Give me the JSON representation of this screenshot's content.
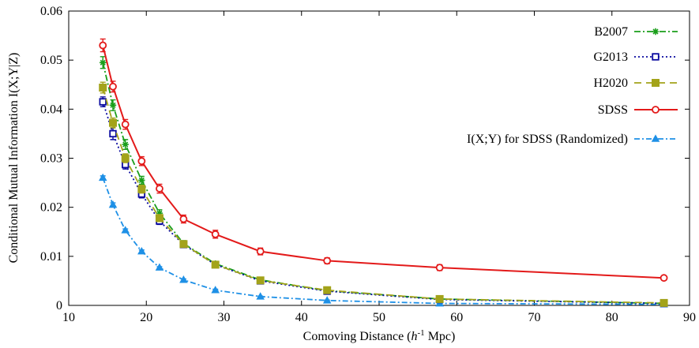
{
  "chart_data": {
    "type": "line",
    "title": "",
    "xlabel": {
      "prefix": "Comoving Distance (",
      "italic": "h",
      "sup": "-1",
      "suffix": " Mpc)"
    },
    "ylabel": "Conditional Mutual Information I(X;Y|Z)",
    "xlim": [
      10,
      90
    ],
    "ylim": [
      0,
      0.06
    ],
    "xticks": [
      10,
      20,
      30,
      40,
      50,
      60,
      70,
      80,
      90
    ],
    "yticks": [
      0,
      0.01,
      0.02,
      0.03,
      0.04,
      0.05,
      0.06
    ],
    "ytick_labels": [
      "0",
      "0.01",
      "0.02",
      "0.03",
      "0.04",
      "0.05",
      "0.06"
    ],
    "xtick_labels": [
      "10",
      "20",
      "30",
      "40",
      "50",
      "60",
      "70",
      "80",
      "90"
    ],
    "grid": false,
    "legend_position": "top-right",
    "x": [
      14.4,
      15.7,
      17.3,
      19.4,
      21.7,
      24.8,
      28.9,
      34.7,
      43.3,
      57.8,
      86.7
    ],
    "series": [
      {
        "name": "B2007",
        "color": "#1a9e1a",
        "marker": "star",
        "dash": "8,3,2,3",
        "values": [
          0.0495,
          0.0408,
          0.0328,
          0.0255,
          0.0188,
          0.0126,
          0.0085,
          0.0052,
          0.003,
          0.0013,
          0.0004
        ],
        "errors": [
          0.0012,
          0.0011,
          0.001,
          0.0008,
          0.0007,
          0.0006,
          0.0004,
          0.0003,
          0.0002,
          0.0001,
          0.0001
        ]
      },
      {
        "name": "G2013",
        "color": "#0a0aa0",
        "marker": "open-square",
        "dash": "2,3",
        "values": [
          0.0415,
          0.035,
          0.0287,
          0.0227,
          0.0172,
          0.0124,
          0.0083,
          0.005,
          0.0029,
          0.0012,
          0.0004
        ],
        "errors": [
          0.001,
          0.0012,
          0.0009,
          0.0008,
          0.0007,
          0.0006,
          0.0004,
          0.0003,
          0.0002,
          0.0001,
          0.0001
        ]
      },
      {
        "name": "H2020",
        "color": "#a3a31a",
        "marker": "filled-square",
        "dash": "9,6",
        "values": [
          0.0444,
          0.0372,
          0.03,
          0.0237,
          0.0178,
          0.0125,
          0.0083,
          0.0051,
          0.0031,
          0.0013,
          0.0005
        ],
        "errors": [
          0.0011,
          0.001,
          0.0009,
          0.0008,
          0.0007,
          0.0006,
          0.0004,
          0.0003,
          0.0002,
          0.0001,
          0.0001
        ]
      },
      {
        "name": "SDSS",
        "color": "#e31a1a",
        "marker": "open-circle",
        "dash": "",
        "values": [
          0.053,
          0.0446,
          0.0369,
          0.0294,
          0.0238,
          0.0176,
          0.0145,
          0.011,
          0.0091,
          0.0077,
          0.0056
        ],
        "errors": [
          0.0013,
          0.0011,
          0.001,
          0.0009,
          0.0009,
          0.0008,
          0.0008,
          0.0007,
          0.0006,
          0.0006,
          0.0004
        ]
      },
      {
        "name": "I(X;Y) for SDSS (Randomized)",
        "color": "#1e90e6",
        "marker": "filled-triangle",
        "dash": "7,3,2,3",
        "values": [
          0.026,
          0.0205,
          0.0153,
          0.011,
          0.0077,
          0.0052,
          0.0031,
          0.0018,
          0.001,
          0.0004,
          0.0002
        ],
        "errors": [
          0.0004,
          0.0004,
          0.0003,
          0.0003,
          0.0002,
          0.0002,
          0.0002,
          0.0001,
          0.0001,
          0.0001,
          0.0001
        ]
      }
    ]
  }
}
